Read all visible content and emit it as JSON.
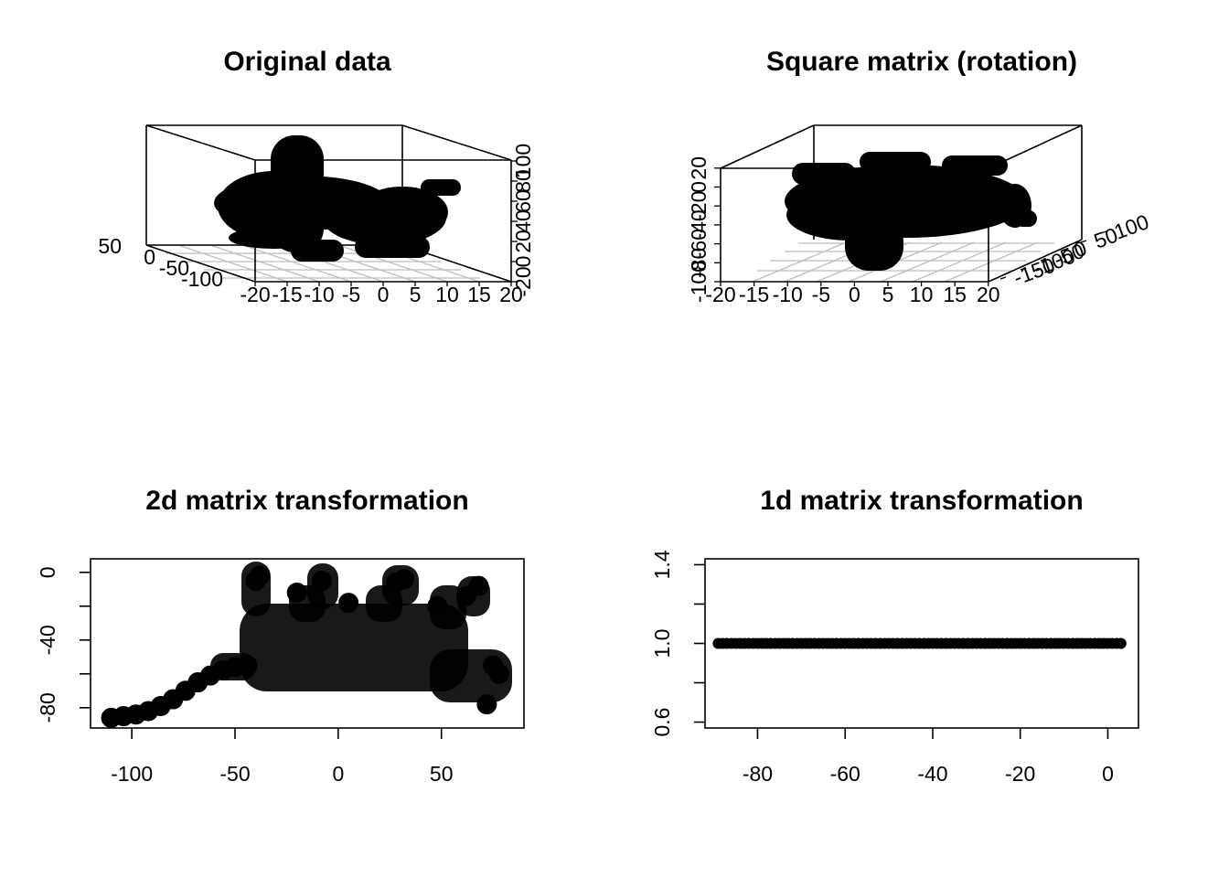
{
  "colors": {
    "background": "#ffffff",
    "ink": "#000000",
    "grid": "#bebebe"
  },
  "chart_data": [
    {
      "type": "scatter",
      "subtype": "3d-scatter",
      "title": "Original data",
      "x_ticks": [
        "-20",
        "-15",
        "-10",
        "-5",
        "0",
        "5",
        "10",
        "15",
        "20"
      ],
      "y_ticks": [
        "-100",
        "-50",
        "0",
        "50"
      ],
      "z_ticks": [
        "-20",
        "0",
        "20",
        "40",
        "60",
        "80",
        "100"
      ],
      "xlim": [
        -20,
        20
      ],
      "ylim": [
        -100,
        50
      ],
      "zlim": [
        -20,
        100
      ],
      "description_shape": "hand-shaped point cloud"
    },
    {
      "type": "scatter",
      "subtype": "3d-scatter",
      "title": "Square matrix (rotation)",
      "x_ticks": [
        "-20",
        "-15",
        "-10",
        "-5",
        "0",
        "5",
        "10",
        "15",
        "20"
      ],
      "y_ticks": [
        "-150",
        "-100",
        "-50",
        "0",
        "50",
        "100"
      ],
      "z_ticks": [
        "-100",
        "-80",
        "-60",
        "-40",
        "-20",
        "0",
        "20"
      ],
      "xlim": [
        -20,
        20
      ],
      "ylim": [
        -150,
        100
      ],
      "zlim": [
        -100,
        20
      ]
    },
    {
      "type": "scatter",
      "title": "2d matrix transformation",
      "x_ticks": [
        -100,
        -50,
        0,
        50
      ],
      "y_ticks": [
        0,
        -40,
        -80
      ],
      "xlim": [
        -120,
        90
      ],
      "ylim": [
        -92,
        8
      ],
      "points_approx": [
        [
          -110,
          -86
        ],
        [
          -104,
          -85
        ],
        [
          -98,
          -84
        ],
        [
          -92,
          -82
        ],
        [
          -86,
          -79
        ],
        [
          -80,
          -75
        ],
        [
          -74,
          -70
        ],
        [
          -68,
          -65
        ],
        [
          -62,
          -61
        ],
        [
          -56,
          -58
        ],
        [
          -50,
          -56
        ],
        [
          -44,
          -55
        ],
        [
          -40,
          -5
        ],
        [
          -38,
          -2
        ],
        [
          -20,
          -12
        ],
        [
          -8,
          -5
        ],
        [
          5,
          -18
        ],
        [
          28,
          -6
        ],
        [
          32,
          -4
        ],
        [
          48,
          -20
        ],
        [
          62,
          -14
        ],
        [
          68,
          -8
        ],
        [
          75,
          -55
        ],
        [
          78,
          -60
        ],
        [
          72,
          -78
        ]
      ]
    },
    {
      "type": "scatter",
      "title": "1d matrix transformation",
      "x_ticks": [
        -80,
        -60,
        -40,
        -20,
        0
      ],
      "y_ticks": [
        "0.6",
        "1.0",
        "1.4"
      ],
      "xlim": [
        -92,
        7
      ],
      "ylim": [
        0.57,
        1.43
      ],
      "x_range": [
        -89,
        3
      ],
      "y_value": 1.0
    }
  ]
}
